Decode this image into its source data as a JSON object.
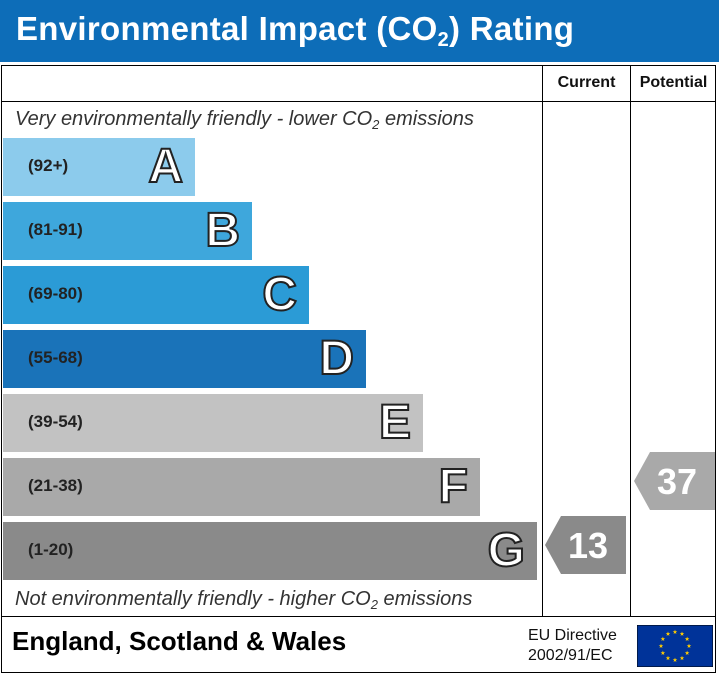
{
  "title": {
    "before": "Environmental Impact (CO",
    "sub": "2",
    "after": ") Rating"
  },
  "columns": {
    "current": "Current",
    "potential": "Potential"
  },
  "captions": {
    "top": {
      "before": "Very environmentally friendly - lower CO",
      "sub": "2",
      "after": " emissions"
    },
    "bottom": {
      "before": "Not environmentally friendly - higher CO",
      "sub": "2",
      "after": " emissions"
    }
  },
  "chart_data": {
    "type": "bar",
    "title": "Environmental Impact (CO2) Rating",
    "bands": [
      {
        "letter": "A",
        "range": "(92+)",
        "color": "#8ccbec"
      },
      {
        "letter": "B",
        "range": "(81-91)",
        "color": "#3ea7dc"
      },
      {
        "letter": "C",
        "range": "(69-80)",
        "color": "#2b9bd6"
      },
      {
        "letter": "D",
        "range": "(55-68)",
        "color": "#1a73b9"
      },
      {
        "letter": "E",
        "range": "(39-54)",
        "color": "#c2c2c2"
      },
      {
        "letter": "F",
        "range": "(21-38)",
        "color": "#a9a9a9"
      },
      {
        "letter": "G",
        "range": "(1-20)",
        "color": "#8a8a8a"
      }
    ],
    "current": {
      "value": 13,
      "band": "G",
      "color": "#8a8a8a"
    },
    "potential": {
      "value": 37,
      "band": "F",
      "color": "#a9a9a9"
    }
  },
  "footer": {
    "region": "England, Scotland & Wales",
    "directive_line1": "EU Directive",
    "directive_line2": "2002/91/EC"
  }
}
